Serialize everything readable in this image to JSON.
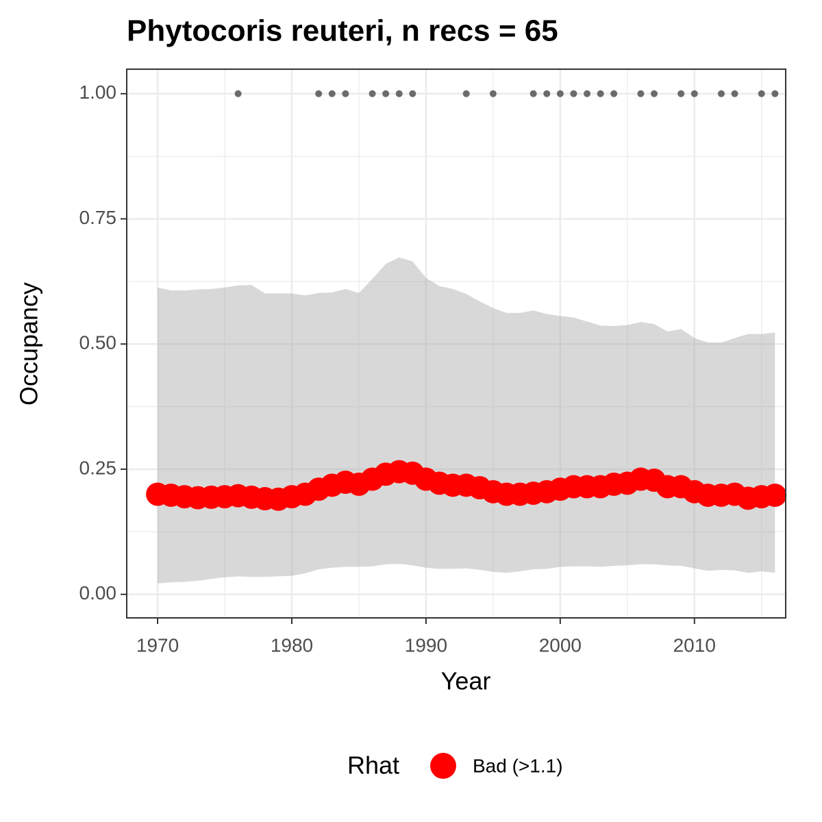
{
  "chart_data": {
    "type": "line",
    "title": "Phytocoris reuteri, n recs = 65",
    "x_label": "Year",
    "y_label": "Occupancy",
    "x": [
      1970,
      1971,
      1972,
      1973,
      1974,
      1975,
      1976,
      1977,
      1978,
      1979,
      1980,
      1981,
      1982,
      1983,
      1984,
      1985,
      1986,
      1987,
      1988,
      1989,
      1990,
      1991,
      1992,
      1993,
      1994,
      1995,
      1996,
      1997,
      1998,
      1999,
      2000,
      2001,
      2002,
      2003,
      2004,
      2005,
      2006,
      2007,
      2008,
      2009,
      2010,
      2011,
      2012,
      2013,
      2014,
      2015,
      2016
    ],
    "series": [
      {
        "name": "Bad (>1.1)",
        "color": "#ff0000",
        "values": [
          0.2,
          0.198,
          0.195,
          0.193,
          0.194,
          0.195,
          0.197,
          0.194,
          0.191,
          0.19,
          0.195,
          0.2,
          0.21,
          0.218,
          0.224,
          0.22,
          0.23,
          0.24,
          0.245,
          0.242,
          0.23,
          0.222,
          0.218,
          0.218,
          0.213,
          0.205,
          0.2,
          0.2,
          0.202,
          0.205,
          0.21,
          0.215,
          0.215,
          0.215,
          0.22,
          0.222,
          0.23,
          0.228,
          0.215,
          0.215,
          0.205,
          0.198,
          0.198,
          0.2,
          0.192,
          0.195,
          0.198
        ]
      }
    ],
    "band": {
      "color": "#a8a8a8",
      "upper": [
        0.613,
        0.607,
        0.607,
        0.609,
        0.61,
        0.613,
        0.617,
        0.618,
        0.601,
        0.601,
        0.601,
        0.597,
        0.602,
        0.603,
        0.61,
        0.602,
        0.63,
        0.66,
        0.673,
        0.665,
        0.632,
        0.616,
        0.61,
        0.6,
        0.585,
        0.572,
        0.562,
        0.562,
        0.567,
        0.56,
        0.556,
        0.553,
        0.545,
        0.537,
        0.536,
        0.538,
        0.544,
        0.54,
        0.525,
        0.53,
        0.512,
        0.503,
        0.503,
        0.512,
        0.52,
        0.52,
        0.523
      ],
      "lower": [
        0.022,
        0.024,
        0.025,
        0.027,
        0.031,
        0.034,
        0.036,
        0.035,
        0.035,
        0.036,
        0.037,
        0.042,
        0.05,
        0.053,
        0.055,
        0.055,
        0.056,
        0.06,
        0.061,
        0.058,
        0.053,
        0.051,
        0.051,
        0.052,
        0.049,
        0.045,
        0.043,
        0.046,
        0.05,
        0.051,
        0.055,
        0.056,
        0.056,
        0.055,
        0.057,
        0.058,
        0.06,
        0.06,
        0.058,
        0.057,
        0.052,
        0.047,
        0.049,
        0.048,
        0.043,
        0.046,
        0.043
      ]
    },
    "records": {
      "color": "#6b6b6b",
      "x": [
        1976,
        1982,
        1983,
        1984,
        1986,
        1987,
        1988,
        1989,
        1993,
        1995,
        1998,
        1999,
        2000,
        2001,
        2002,
        2003,
        2004,
        2006,
        2007,
        2009,
        2010,
        2012,
        2013,
        2015,
        2016
      ],
      "values": [
        1,
        1,
        1,
        1,
        1,
        1,
        1,
        1,
        1,
        1,
        1,
        1,
        1,
        1,
        1,
        1,
        1,
        1,
        1,
        1,
        1,
        1,
        1,
        1,
        1
      ]
    },
    "legend_title": "Rhat",
    "legend_position": "bottom",
    "xlim": [
      1967.7,
      2016.8
    ],
    "ylim": [
      -0.047,
      1.049
    ],
    "xticks": [
      1970,
      1980,
      1990,
      2000,
      2010
    ],
    "yticks": [
      {
        "value": 0,
        "label": "0.00"
      },
      {
        "value": 0.25,
        "label": "0.25"
      },
      {
        "value": 0.5,
        "label": "0.50"
      },
      {
        "value": 0.75,
        "label": "0.75"
      },
      {
        "value": 1,
        "label": "1.00"
      }
    ],
    "grid": true
  }
}
